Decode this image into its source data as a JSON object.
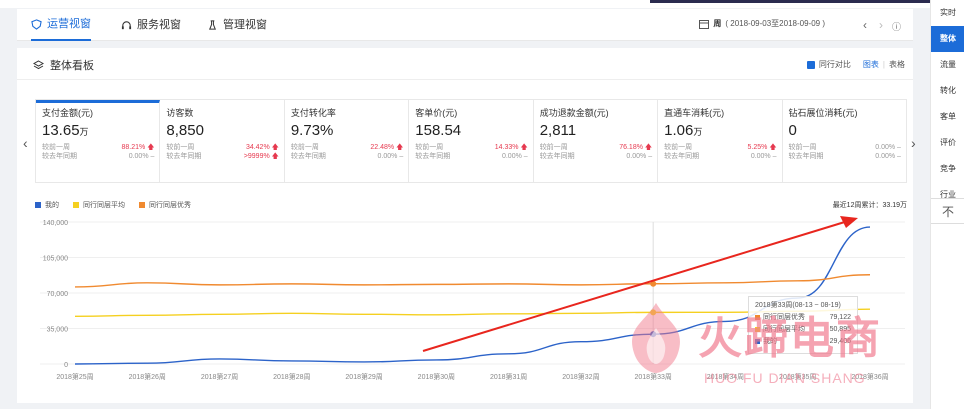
{
  "tabs": [
    {
      "label": "运营视窗",
      "active": true
    },
    {
      "label": "服务视窗",
      "active": false
    },
    {
      "label": "管理视窗",
      "active": false
    }
  ],
  "date": {
    "period": "周",
    "range": "( 2018-09-03至2018-09-09 )"
  },
  "panel": {
    "title": "整体看板",
    "compare_label": "同行对比",
    "view_chart": "图表",
    "view_sep": "|",
    "view_table": "表格"
  },
  "metrics": [
    {
      "label": "支付金额(元)",
      "value": "13.65",
      "unit": "万",
      "wow_label": "较前一周",
      "wow": "88.21%",
      "wow_up": true,
      "yoy_label": "较去年同期",
      "yoy": "0.00%",
      "yoy_dash": "–"
    },
    {
      "label": "访客数",
      "value": "8,850",
      "unit": "",
      "wow_label": "较前一周",
      "wow": "34.42%",
      "wow_up": true,
      "yoy_label": "较去年同期",
      "yoy": ">9999%",
      "yoy_up": true
    },
    {
      "label": "支付转化率",
      "value": "9.73%",
      "unit": "",
      "wow_label": "较前一周",
      "wow": "22.48%",
      "wow_up": true,
      "yoy_label": "较去年同期",
      "yoy": "0.00%",
      "yoy_dash": "–"
    },
    {
      "label": "客单价(元)",
      "value": "158.54",
      "unit": "",
      "wow_label": "较前一周",
      "wow": "14.33%",
      "wow_up": true,
      "yoy_label": "较去年同期",
      "yoy": "0.00%",
      "yoy_dash": "–"
    },
    {
      "label": "成功退款金额(元)",
      "value": "2,811",
      "unit": "",
      "wow_label": "较前一周",
      "wow": "76.18%",
      "wow_up": true,
      "yoy_label": "较去年同期",
      "yoy": "0.00%",
      "yoy_dash": "–"
    },
    {
      "label": "直通车消耗(元)",
      "value": "1.06",
      "unit": "万",
      "wow_label": "较前一周",
      "wow": "5.25%",
      "wow_up": true,
      "yoy_label": "较去年同期",
      "yoy": "0.00%",
      "yoy_dash": "–"
    },
    {
      "label": "钻石展位消耗(元)",
      "value": "0",
      "unit": "",
      "wow_label": "较前一周",
      "wow": "0.00%",
      "wow_dash": "–",
      "yoy_label": "较去年同期",
      "yoy": "0.00%",
      "yoy_dash": "–"
    }
  ],
  "legend": [
    {
      "name": "我的",
      "color": "#2c63c9"
    },
    {
      "name": "同行同层平均",
      "color": "#f5d020"
    },
    {
      "name": "同行同层优秀",
      "color": "#f08a30"
    }
  ],
  "cumulative": "最近12周累计：33.19万",
  "tooltip": {
    "title": "2018第33周(08-13 ~ 08-19)",
    "rows": [
      {
        "name": "同行同层优秀",
        "value": "79,122",
        "color": "#f08a30"
      },
      {
        "name": "同行同层平均",
        "value": "50,895",
        "color": "#f5d020"
      },
      {
        "name": "我的",
        "value": "29,406",
        "color": "#2c63c9"
      }
    ]
  },
  "sidebar": [
    "实时",
    "整体",
    "流量",
    "转化",
    "客单",
    "评价",
    "竞争",
    "行业"
  ],
  "sidebar_active": 1,
  "sidebar_top_glyph": "不",
  "watermark": {
    "cn": "火蹄电商",
    "en": "HUO FU DIAN SHANG"
  },
  "chart_data": {
    "type": "line",
    "categories": [
      "2018第25周",
      "2018第26周",
      "2018第27周",
      "2018第28周",
      "2018第29周",
      "2018第30周",
      "2018第31周",
      "2018第32周",
      "2018第33周",
      "2018第34周",
      "2018第35周",
      "2018第36周"
    ],
    "yticks": [
      "140,000",
      "105,000",
      "70,000",
      "35,000",
      "0"
    ],
    "ylim": [
      0,
      140000
    ],
    "series": [
      {
        "name": "我的",
        "color": "#2c63c9",
        "values": [
          0,
          800,
          5000,
          3000,
          2000,
          4000,
          10000,
          22000,
          29406,
          42000,
          65000,
          135000
        ]
      },
      {
        "name": "同行同层平均",
        "color": "#f5d020",
        "values": [
          47000,
          48000,
          49000,
          50000,
          49000,
          48500,
          49500,
          50000,
          50895,
          51000,
          52000,
          54000
        ]
      },
      {
        "name": "同行同层优秀",
        "color": "#f08a30",
        "values": [
          76000,
          80000,
          78000,
          79000,
          78000,
          78500,
          79000,
          78000,
          79122,
          80000,
          82000,
          88000
        ]
      }
    ]
  }
}
